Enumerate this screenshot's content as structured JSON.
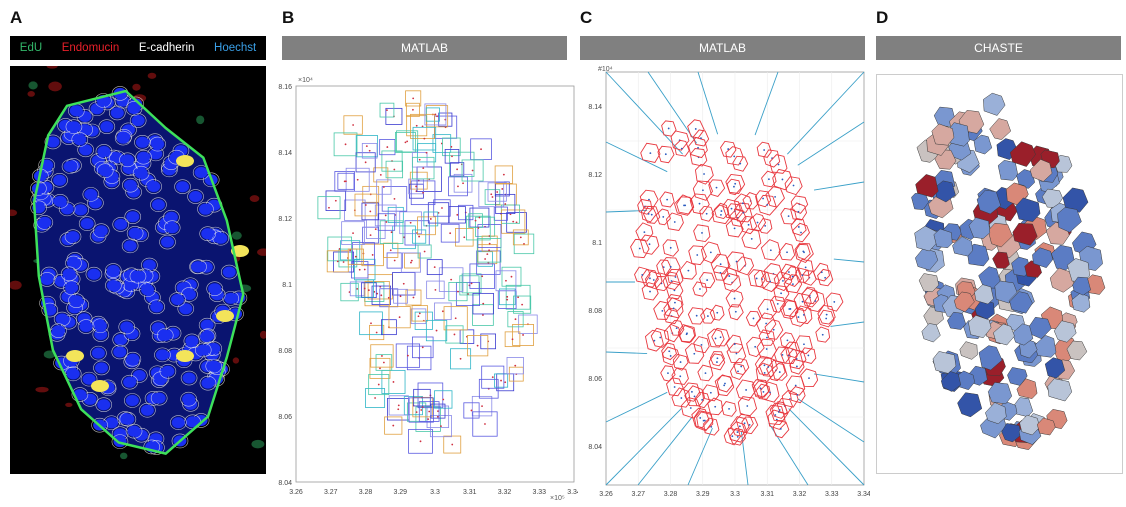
{
  "panels": [
    {
      "letter": "A"
    },
    {
      "letter": "B",
      "header": "MATLAB"
    },
    {
      "letter": "C",
      "header": "MATLAB"
    },
    {
      "letter": "D",
      "header": "CHASTE"
    }
  ],
  "legend": [
    {
      "label": "EdU",
      "color": "#33b86a"
    },
    {
      "label": "Endomucin",
      "color": "#e8202a"
    },
    {
      "label": "E-cadherin",
      "color": "#ffffff"
    },
    {
      "label": "Hoechst",
      "color": "#3aa0e8"
    }
  ],
  "axes": {
    "y_exponent": "×10⁴",
    "y_exponent_c": "#10⁴",
    "x_exponent": "×10⁵",
    "b_yticks": [
      "8.16",
      "8.14",
      "8.12",
      "8.1",
      "8.08",
      "8.06",
      "8.04"
    ],
    "c_yticks": [
      "8.14",
      "8.12",
      "8.1",
      "8.08",
      "8.06",
      "8.04"
    ],
    "xticks": [
      "3.26",
      "3.27",
      "3.28",
      "3.29",
      "3.3",
      "3.31",
      "3.32",
      "3.33",
      "3.34"
    ]
  },
  "colors": {
    "header": "#808080",
    "nuclei": "#1a2ff0",
    "membrane": "#e6e6e6",
    "boundary": "#3ee05a",
    "edu": "#f3e45a",
    "voronoi": "#e8383f",
    "rays": "#3aa0c8"
  }
}
